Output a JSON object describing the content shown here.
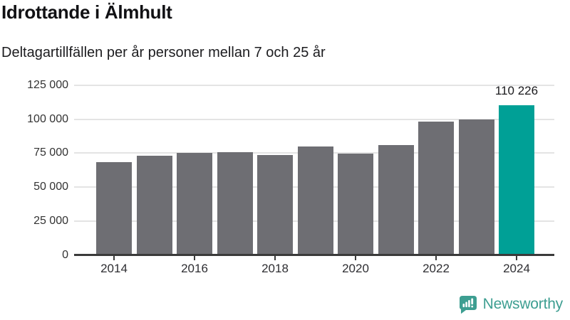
{
  "header": {
    "title": "Idrottande i Älmhult",
    "subtitle": "Deltagartillfällen per år personer mellan 7 och 25 år"
  },
  "chart_data": {
    "type": "bar",
    "title": "Idrottande i Älmhult",
    "subtitle": "Deltagartillfällen per år personer mellan 7 och 25 år",
    "categories": [
      "2014",
      "2015",
      "2016",
      "2017",
      "2018",
      "2019",
      "2020",
      "2021",
      "2022",
      "2023",
      "2024"
    ],
    "values": [
      68500,
      73200,
      75300,
      75800,
      73700,
      79700,
      74800,
      81000,
      98200,
      99600,
      110226
    ],
    "xlabel": "",
    "ylabel": "",
    "ylim": [
      0,
      125000
    ],
    "yticks": {
      "values": [
        0,
        25000,
        50000,
        75000,
        100000,
        125000
      ],
      "labels": [
        "0",
        "25 000",
        "50 000",
        "75 000",
        "100 000",
        "125 000"
      ]
    },
    "xticks": [
      "2014",
      "2016",
      "2018",
      "2020",
      "2022",
      "2024"
    ],
    "grid": true,
    "legend": false,
    "annotation": {
      "index": 10,
      "text": "110 226"
    },
    "highlight_index": 10
  },
  "footer": {
    "brand": "Newsworthy",
    "icon": "newsworthy-bar-chart-speech-bubble-icon"
  },
  "colors": {
    "bar": "#6e6e73",
    "highlight": "#00a096",
    "gridline": "#e4e4e4",
    "axis": "#3a3a3a",
    "logo": "#3d9e91"
  }
}
